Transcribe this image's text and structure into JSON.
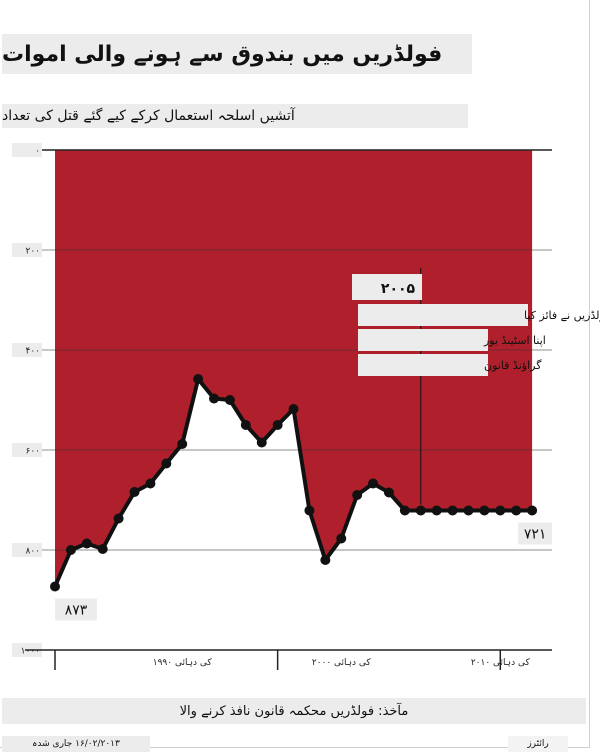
{
  "chart_data": {
    "type": "area",
    "title": "فولڈریں میں بندوق سے ہونے والی اموات",
    "subtitle": "آتشیں اسلحہ استعمال کرکے کیے گئے قتل کی تعداد",
    "ylim": [
      0,
      1000
    ],
    "y_inverted": true,
    "y_ticks": [
      {
        "value": 0,
        "label": "۰"
      },
      {
        "value": 200,
        "label": "۲۰۰"
      },
      {
        "value": 400,
        "label": "۴۰۰"
      },
      {
        "value": 600,
        "label": "۶۰۰"
      },
      {
        "value": 800,
        "label": "۸۰۰"
      },
      {
        "value": 1000,
        "label": "۱۰۰۰"
      }
    ],
    "xlim": [
      1982,
      2013
    ],
    "x_ticks": [
      {
        "value": 1990,
        "label": "۱۹۹۰ کی دہائی"
      },
      {
        "value": 2000,
        "label": "۲۰۰۰ کی دہائی"
      },
      {
        "value": 2010,
        "label": "۲۰۱۰ کی دہائی"
      }
    ],
    "x_dividers": [
      1982,
      1996,
      2010
    ],
    "series": [
      {
        "x": [
          1982,
          1983,
          1984,
          1985,
          1986,
          1987,
          1988,
          1989,
          1990,
          1991,
          1992,
          1993,
          1994,
          1995,
          1996,
          1997,
          1998,
          1999,
          2000,
          2001,
          2002,
          2003,
          2004,
          2005,
          2006,
          2007,
          2008,
          2009,
          2010,
          2011,
          2012
        ],
        "values": [
          873,
          800,
          787,
          798,
          737,
          684,
          667,
          627,
          588,
          458,
          497,
          500,
          550,
          585,
          550,
          518,
          721,
          820,
          777,
          690,
          667,
          685,
          721,
          721,
          721,
          721,
          721,
          721,
          721,
          721,
          721
        ]
      }
    ],
    "fill_color": "#b0202c",
    "line_color": "#111111",
    "annotations": [
      {
        "year": 2005,
        "value_label": "۲۰۰۵",
        "lines": [
          "فولڈریں نے فائز کیا",
          "اپنا اسٹینڈ یور",
          "گراؤنڈ قانون"
        ]
      }
    ],
    "start_label": "۸۷۳",
    "end_label": "۷۲۱"
  },
  "source_note": "مآخذ: فولڈریں محکمہ قانون نافذ کرنے والا",
  "date_note": "۱۶/۰۲/۲۰۱۳ جاری شدہ",
  "credit_note": "رائٹرز"
}
